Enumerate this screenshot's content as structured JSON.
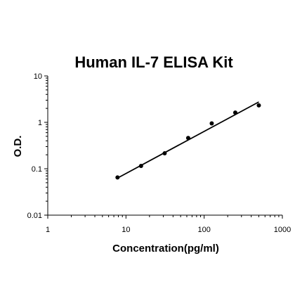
{
  "chart_data": {
    "type": "scatter",
    "title": "Human IL-7 ELISA Kit",
    "xlabel": "Concentration(pg/ml)",
    "ylabel": "O.D.",
    "x_scale": "log",
    "y_scale": "log",
    "xlim": [
      1,
      1000
    ],
    "ylim": [
      0.01,
      10
    ],
    "x_ticks": [
      1,
      10,
      100,
      1000
    ],
    "x_tick_labels": [
      "1",
      "10",
      "100",
      "1000"
    ],
    "y_ticks": [
      0.01,
      0.1,
      1,
      10
    ],
    "y_tick_labels": [
      "0.01",
      "0.1",
      "1",
      "10"
    ],
    "grid": false,
    "series": [
      {
        "x": [
          7.8,
          15.6,
          31.25,
          62.5,
          125,
          250,
          500
        ],
        "y": [
          0.065,
          0.115,
          0.215,
          0.46,
          0.95,
          1.62,
          2.32
        ],
        "marker_color": "#000000"
      }
    ],
    "trendline": {
      "x": [
        7.8,
        500
      ],
      "y": [
        0.063,
        2.75
      ],
      "color": "#000000"
    }
  }
}
